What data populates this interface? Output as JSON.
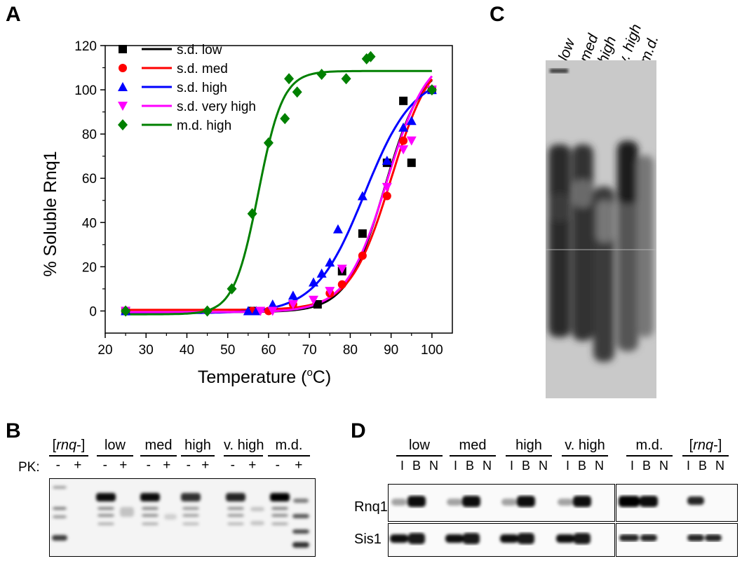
{
  "panels": {
    "a": "A",
    "b": "B",
    "c": "C",
    "d": "D"
  },
  "chart_data": {
    "type": "scatter",
    "xlabel": "Temperature (",
    "xlabel_sup": "o",
    "xlabel_unit": "C)",
    "ylabel": "% Soluble Rnq1",
    "xlim": [
      20,
      105
    ],
    "ylim": [
      -10,
      120
    ],
    "xticks": [
      20,
      30,
      40,
      50,
      60,
      70,
      80,
      90,
      100
    ],
    "yticks": [
      0,
      20,
      40,
      60,
      80,
      100,
      120
    ],
    "legend_placement": "top-left",
    "series": [
      {
        "name": "s.d. low",
        "color": "#000000",
        "marker": "square",
        "points": [
          [
            25,
            0
          ],
          [
            56,
            0
          ],
          [
            72,
            3
          ],
          [
            78,
            18
          ],
          [
            83,
            35
          ],
          [
            89,
            67
          ],
          [
            93,
            95
          ],
          [
            95,
            67
          ],
          [
            100,
            100
          ]
        ],
        "fit": {
          "bottom": -0.5,
          "top": 113,
          "x50": 88.5,
          "slope": 4.6
        }
      },
      {
        "name": "s.d. med",
        "color": "#ff0000",
        "marker": "circle",
        "points": [
          [
            25,
            0
          ],
          [
            56,
            0
          ],
          [
            60,
            0
          ],
          [
            66,
            3
          ],
          [
            75,
            8
          ],
          [
            78,
            12
          ],
          [
            83,
            25
          ],
          [
            89,
            52
          ],
          [
            93,
            77
          ],
          [
            100,
            100
          ]
        ],
        "fit": {
          "bottom": 0.5,
          "top": 119,
          "x50": 90,
          "slope": 5.0
        }
      },
      {
        "name": "s.d. high",
        "color": "#0000ff",
        "marker": "triangle-up",
        "points": [
          [
            25,
            0
          ],
          [
            55,
            0
          ],
          [
            57,
            0
          ],
          [
            61,
            3
          ],
          [
            66,
            7
          ],
          [
            71,
            13
          ],
          [
            73,
            17
          ],
          [
            75,
            22
          ],
          [
            77,
            37
          ],
          [
            83,
            52
          ],
          [
            89,
            68
          ],
          [
            93,
            83
          ],
          [
            95,
            86
          ],
          [
            100,
            100
          ]
        ],
        "fit": {
          "bottom": -1,
          "top": 107,
          "x50": 83.5,
          "slope": 6.0
        }
      },
      {
        "name": "s.d. very high",
        "color": "#ff00ff",
        "marker": "triangle-down",
        "points": [
          [
            25,
            0
          ],
          [
            58,
            0
          ],
          [
            61,
            0
          ],
          [
            66,
            3
          ],
          [
            71,
            5
          ],
          [
            75,
            9
          ],
          [
            78,
            19
          ],
          [
            89,
            56
          ],
          [
            93,
            73
          ],
          [
            95,
            77
          ],
          [
            100,
            100
          ]
        ],
        "fit": {
          "bottom": -0.5,
          "top": 118,
          "x50": 89,
          "slope": 5.0
        }
      },
      {
        "name": "m.d. high",
        "color": "#008000",
        "marker": "diamond",
        "points": [
          [
            25,
            0
          ],
          [
            45,
            0
          ],
          [
            51,
            10
          ],
          [
            56,
            44
          ],
          [
            60,
            76
          ],
          [
            64,
            87
          ],
          [
            65,
            105
          ],
          [
            67,
            99
          ],
          [
            73,
            107
          ],
          [
            79,
            105
          ],
          [
            84,
            114
          ],
          [
            85,
            115
          ],
          [
            100,
            100
          ]
        ],
        "fit": {
          "bottom": -1.5,
          "top": 108.5,
          "x50": 57.5,
          "slope": 3.0
        }
      }
    ]
  },
  "panel_b": {
    "groups": [
      {
        "label_italic": "rnq",
        "label_pre": "[",
        "label_post": "-]"
      },
      {
        "label": "low"
      },
      {
        "label": "med"
      },
      {
        "label": "high"
      },
      {
        "label": "v. high"
      },
      {
        "label": "m.d."
      }
    ],
    "pk_label": "PK:",
    "pk_minus": "-",
    "pk_plus": "+"
  },
  "panel_c": {
    "lanes": [
      "low",
      "med",
      "high",
      "v. high",
      "m.d."
    ]
  },
  "panel_d": {
    "groups_left": [
      "low",
      "med",
      "high",
      "v. high"
    ],
    "groups_right": [
      {
        "label": "m.d."
      },
      {
        "label_pre": "[",
        "label_italic": "rnq",
        "label_post": "-]"
      }
    ],
    "fractions": [
      "I",
      "B",
      "N"
    ],
    "rows": [
      "Rnq1",
      "Sis1"
    ]
  }
}
